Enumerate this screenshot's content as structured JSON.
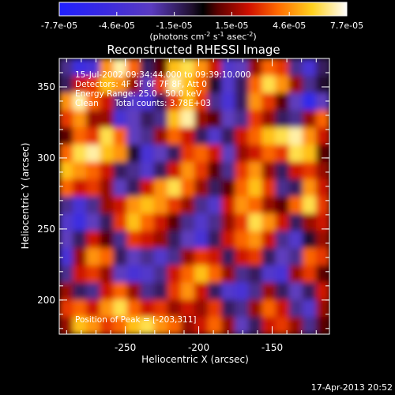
{
  "colorbar": {
    "tick_labels": [
      "-7.7e-05",
      "-4.6e-05",
      "-1.5e-05",
      "1.5e-05",
      "4.6e-05",
      "7.7e-05"
    ],
    "unit_label": "(photons cm",
    "unit_sup1": "-2",
    "unit_mid": " s",
    "unit_sup2": "-1",
    "unit_mid2": " asec",
    "unit_sup3": "-2",
    "unit_end": ")",
    "range": [
      -7.7e-05,
      7.7e-05
    ]
  },
  "chart_data": {
    "type": "heatmap",
    "title": "Reconstructed RHESSI Image",
    "xlabel": "Heliocentric X (arcsec)",
    "ylabel": "Heliocentric Y (arcsec)",
    "x_ticks": [
      "-250",
      "-200",
      "-150"
    ],
    "y_ticks": [
      "200",
      "250",
      "300",
      "350"
    ],
    "xlim": [
      -295,
      -111
    ],
    "ylim": [
      176,
      370
    ],
    "colormap": "RHESSI (blue-purple-black-red-yellow-white)",
    "annotations": [
      "15-Jul-2002 09:34:44.000 to 09:39:10.000",
      "Detectors: 4F 5F 6F 7F 8F, Att 0",
      "Energy Range: 25.0 - 50.0 keV",
      "Clean",
      "Total counts: 3.78E+03",
      "Position of Peak = [-203,311]"
    ],
    "peak_position": [
      -203,
      311
    ],
    "footer_date": "17-Apr-2013 20:52",
    "values": [
      [
        -0.3,
        -0.7,
        -0.6,
        0.6,
        0.9,
        0.5,
        -0.2,
        0.1,
        0.7,
        0.8,
        0.6,
        0.3,
        -0.5,
        -0.4,
        0.2,
        0.5,
        0.4,
        -0.3,
        -0.6,
        -0.2
      ],
      [
        -0.2,
        0.3,
        0.4,
        0.7,
        0.6,
        0.2,
        -0.4,
        0.4,
        0.9,
        0.7,
        0.5,
        -0.1,
        -0.5,
        -0.2,
        0.5,
        0.8,
        0.6,
        0.2,
        -0.3,
        -0.1
      ],
      [
        0.6,
        0.9,
        0.5,
        0.3,
        -0.3,
        -0.5,
        -0.6,
        -0.2,
        0.4,
        0.7,
        0.4,
        -0.3,
        -0.6,
        -0.2,
        0.6,
        0.4,
        0.1,
        -0.4,
        -0.8,
        -0.4
      ],
      [
        0.4,
        0.6,
        0.2,
        0.2,
        -0.6,
        -0.4,
        -0.2,
        -0.3,
        0.7,
        0.9,
        0.2,
        0.1,
        -0.4,
        -0.3,
        0.4,
        0.2,
        -0.2,
        -0.3,
        0.2,
        0.5
      ],
      [
        0.1,
        0.5,
        0.4,
        0.8,
        0.5,
        -0.4,
        -0.3,
        0.2,
        0.5,
        0.3,
        -0.2,
        -0.5,
        -0.2,
        0.3,
        0.5,
        0.7,
        0.8,
        0.9,
        0.6,
        0.3
      ],
      [
        0.5,
        0.8,
        0.9,
        0.7,
        0.6,
        -0.1,
        -0.6,
        -0.4,
        -0.2,
        0.4,
        0.5,
        0.3,
        -0.4,
        0.2,
        0.3,
        0.5,
        0.4,
        0.8,
        0.7,
        0.1
      ],
      [
        0.7,
        0.6,
        0.5,
        0.3,
        -0.2,
        -0.3,
        -0.5,
        -0.2,
        0.3,
        0.6,
        0.4,
        0.1,
        -0.3,
        0.4,
        0.6,
        0.2,
        -0.2,
        0.3,
        0.4,
        0.2
      ],
      [
        0.5,
        0.3,
        0.4,
        0.2,
        -0.4,
        -0.2,
        0.3,
        0.6,
        0.8,
        0.5,
        0.2,
        -0.2,
        0.1,
        0.5,
        0.7,
        0.4,
        -0.3,
        -0.2,
        0.6,
        0.3
      ],
      [
        -0.3,
        -0.6,
        -0.3,
        0.2,
        0.3,
        0.6,
        0.7,
        0.6,
        0.4,
        0.2,
        -0.3,
        -0.5,
        0.3,
        0.6,
        0.5,
        0.2,
        0.1,
        0.5,
        0.8,
        0.4
      ],
      [
        -0.5,
        -0.7,
        -0.4,
        -0.2,
        0.4,
        0.7,
        0.5,
        0.3,
        0.1,
        -0.3,
        -0.5,
        -0.3,
        0.2,
        0.4,
        0.8,
        0.6,
        0.3,
        -0.2,
        0.2,
        0.3
      ],
      [
        -0.4,
        -0.2,
        0.3,
        0.1,
        -0.3,
        0.4,
        0.3,
        0.2,
        -0.2,
        -0.4,
        -0.6,
        -0.2,
        0.3,
        0.5,
        0.6,
        0.3,
        -0.3,
        -0.5,
        -0.1,
        0.2
      ],
      [
        -0.6,
        0.2,
        0.6,
        0.5,
        -0.2,
        -0.4,
        -0.3,
        -0.5,
        -0.3,
        0.2,
        0.4,
        0.3,
        -0.2,
        0.3,
        0.4,
        -0.2,
        -0.4,
        -0.3,
        0.5,
        0.4
      ],
      [
        -0.3,
        0.3,
        0.4,
        0.2,
        -0.4,
        -0.6,
        -0.5,
        -0.3,
        0.3,
        0.5,
        0.7,
        0.5,
        0.2,
        -0.3,
        -0.2,
        -0.5,
        -0.6,
        0.2,
        0.4,
        0.1
      ],
      [
        0.2,
        -0.2,
        -0.3,
        0.3,
        0.5,
        0.2,
        -0.3,
        -0.2,
        0.4,
        0.6,
        0.3,
        -0.2,
        -0.5,
        -0.6,
        -0.3,
        0.2,
        -0.2,
        -0.4,
        -0.2,
        0.3
      ],
      [
        0.4,
        0.5,
        0.3,
        0.6,
        0.8,
        0.5,
        0.3,
        0.4,
        0.2,
        0.3,
        0.2,
        0.4,
        -0.2,
        -0.3,
        0.2,
        0.5,
        0.3,
        -0.3,
        -0.5,
        0.2
      ],
      [
        0.2,
        0.7,
        0.6,
        0.4,
        0.5,
        0.7,
        0.8,
        0.6,
        0.5,
        0.2,
        0.3,
        0.5,
        0.2,
        -0.4,
        -0.2,
        0.3,
        0.4,
        0.2,
        -0.3,
        0.1
      ]
    ]
  }
}
